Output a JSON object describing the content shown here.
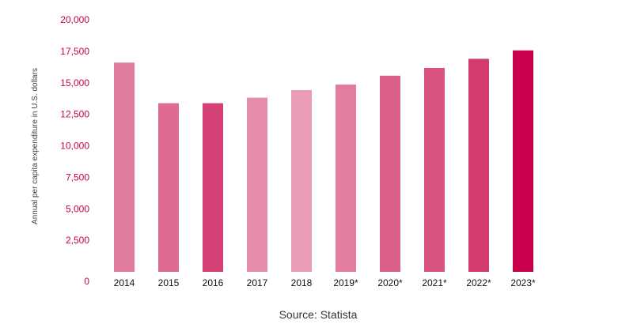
{
  "chart_data": {
    "type": "bar",
    "title": "",
    "xlabel": "",
    "ylabel": "Annual per capita expenditure in U.S. dollars",
    "categories": [
      "2014",
      "2015",
      "2016",
      "2017",
      "2018",
      "2019*",
      "2020*",
      "2021*",
      "2022*",
      "2023*"
    ],
    "values": [
      16600,
      13380,
      13380,
      13820,
      14420,
      14860,
      15560,
      16180,
      16900,
      17570
    ],
    "colors": [
      "#e07a9e",
      "#df6a93",
      "#d54077",
      "#e68cac",
      "#eb9db8",
      "#e27d9f",
      "#dc5f8b",
      "#d9557f",
      "#d23b70",
      "#c8004b"
    ],
    "ylim": [
      0,
      20000
    ],
    "yticks": [
      0,
      2500,
      5000,
      7500,
      10000,
      12500,
      15000,
      17500,
      20000
    ],
    "ytick_labels": [
      "0",
      "2,500",
      "5,000",
      "7,500",
      "10,000",
      "12,500",
      "15,000",
      "17,500",
      "20,000"
    ],
    "grid": false,
    "source": "Source: Statista"
  }
}
